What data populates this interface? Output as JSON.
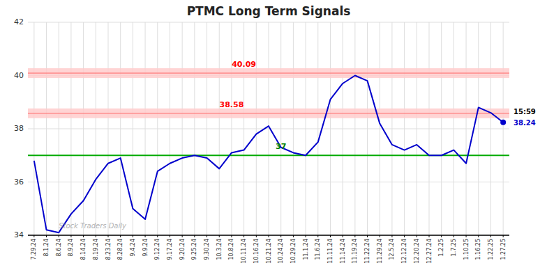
{
  "chart_data": {
    "type": "line",
    "title": "PTMC Long Term Signals",
    "categories": [
      "7.29.24",
      "8.1.24",
      "8.6.24",
      "8.9.24",
      "8.14.24",
      "8.19.24",
      "8.23.24",
      "8.28.24",
      "9.4.24",
      "9.9.24",
      "9.12.24",
      "9.17.24",
      "9.20.24",
      "9.25.24",
      "9.30.24",
      "10.3.24",
      "10.8.24",
      "10.11.24",
      "10.16.24",
      "10.21.24",
      "10.24.24",
      "10.29.24",
      "11.1.24",
      "11.6.24",
      "11.11.24",
      "11.14.24",
      "11.19.24",
      "11.22.24",
      "11.29.24",
      "12.5.24",
      "12.12.24",
      "12.20.24",
      "12.27.24",
      "1.2.25",
      "1.7.25",
      "1.10.25",
      "1.16.25",
      "1.22.25",
      "1.27.25"
    ],
    "values": [
      36.8,
      34.2,
      34.1,
      34.8,
      35.3,
      36.1,
      36.7,
      36.9,
      35.0,
      34.6,
      36.4,
      36.7,
      36.9,
      37.0,
      36.9,
      36.5,
      37.1,
      37.2,
      37.8,
      38.1,
      37.3,
      37.1,
      37.0,
      37.5,
      39.1,
      39.7,
      40.0,
      39.8,
      38.2,
      37.4,
      37.2,
      37.4,
      37.0,
      37.0,
      37.2,
      36.7,
      38.8,
      38.6,
      38.24
    ],
    "color": "#0000cc",
    "ylim": [
      34,
      42
    ],
    "yticks": [
      34,
      36,
      38,
      40,
      42
    ],
    "grid": true,
    "grid_color": "#dddddd",
    "background_color": "#ffffff",
    "reference_lines": [
      {
        "value": 40.09,
        "label": "40.09",
        "color": "#ff6666",
        "label_color": "red",
        "band_color": "#ffcccc",
        "at": "10.11.24"
      },
      {
        "value": 38.58,
        "label": "38.58",
        "color": "#ff6666",
        "label_color": "red",
        "band_color": "#ffcccc",
        "at": "10.8.24"
      },
      {
        "value": 37.0,
        "label": "37",
        "color": "#00aa00",
        "label_color": "green",
        "at": "10.24.24"
      }
    ],
    "annotations": [
      {
        "text": "15:59",
        "color": "black"
      },
      {
        "text": "38.24",
        "color": "#0000cc"
      }
    ],
    "watermark": "Stock Traders Daily"
  }
}
